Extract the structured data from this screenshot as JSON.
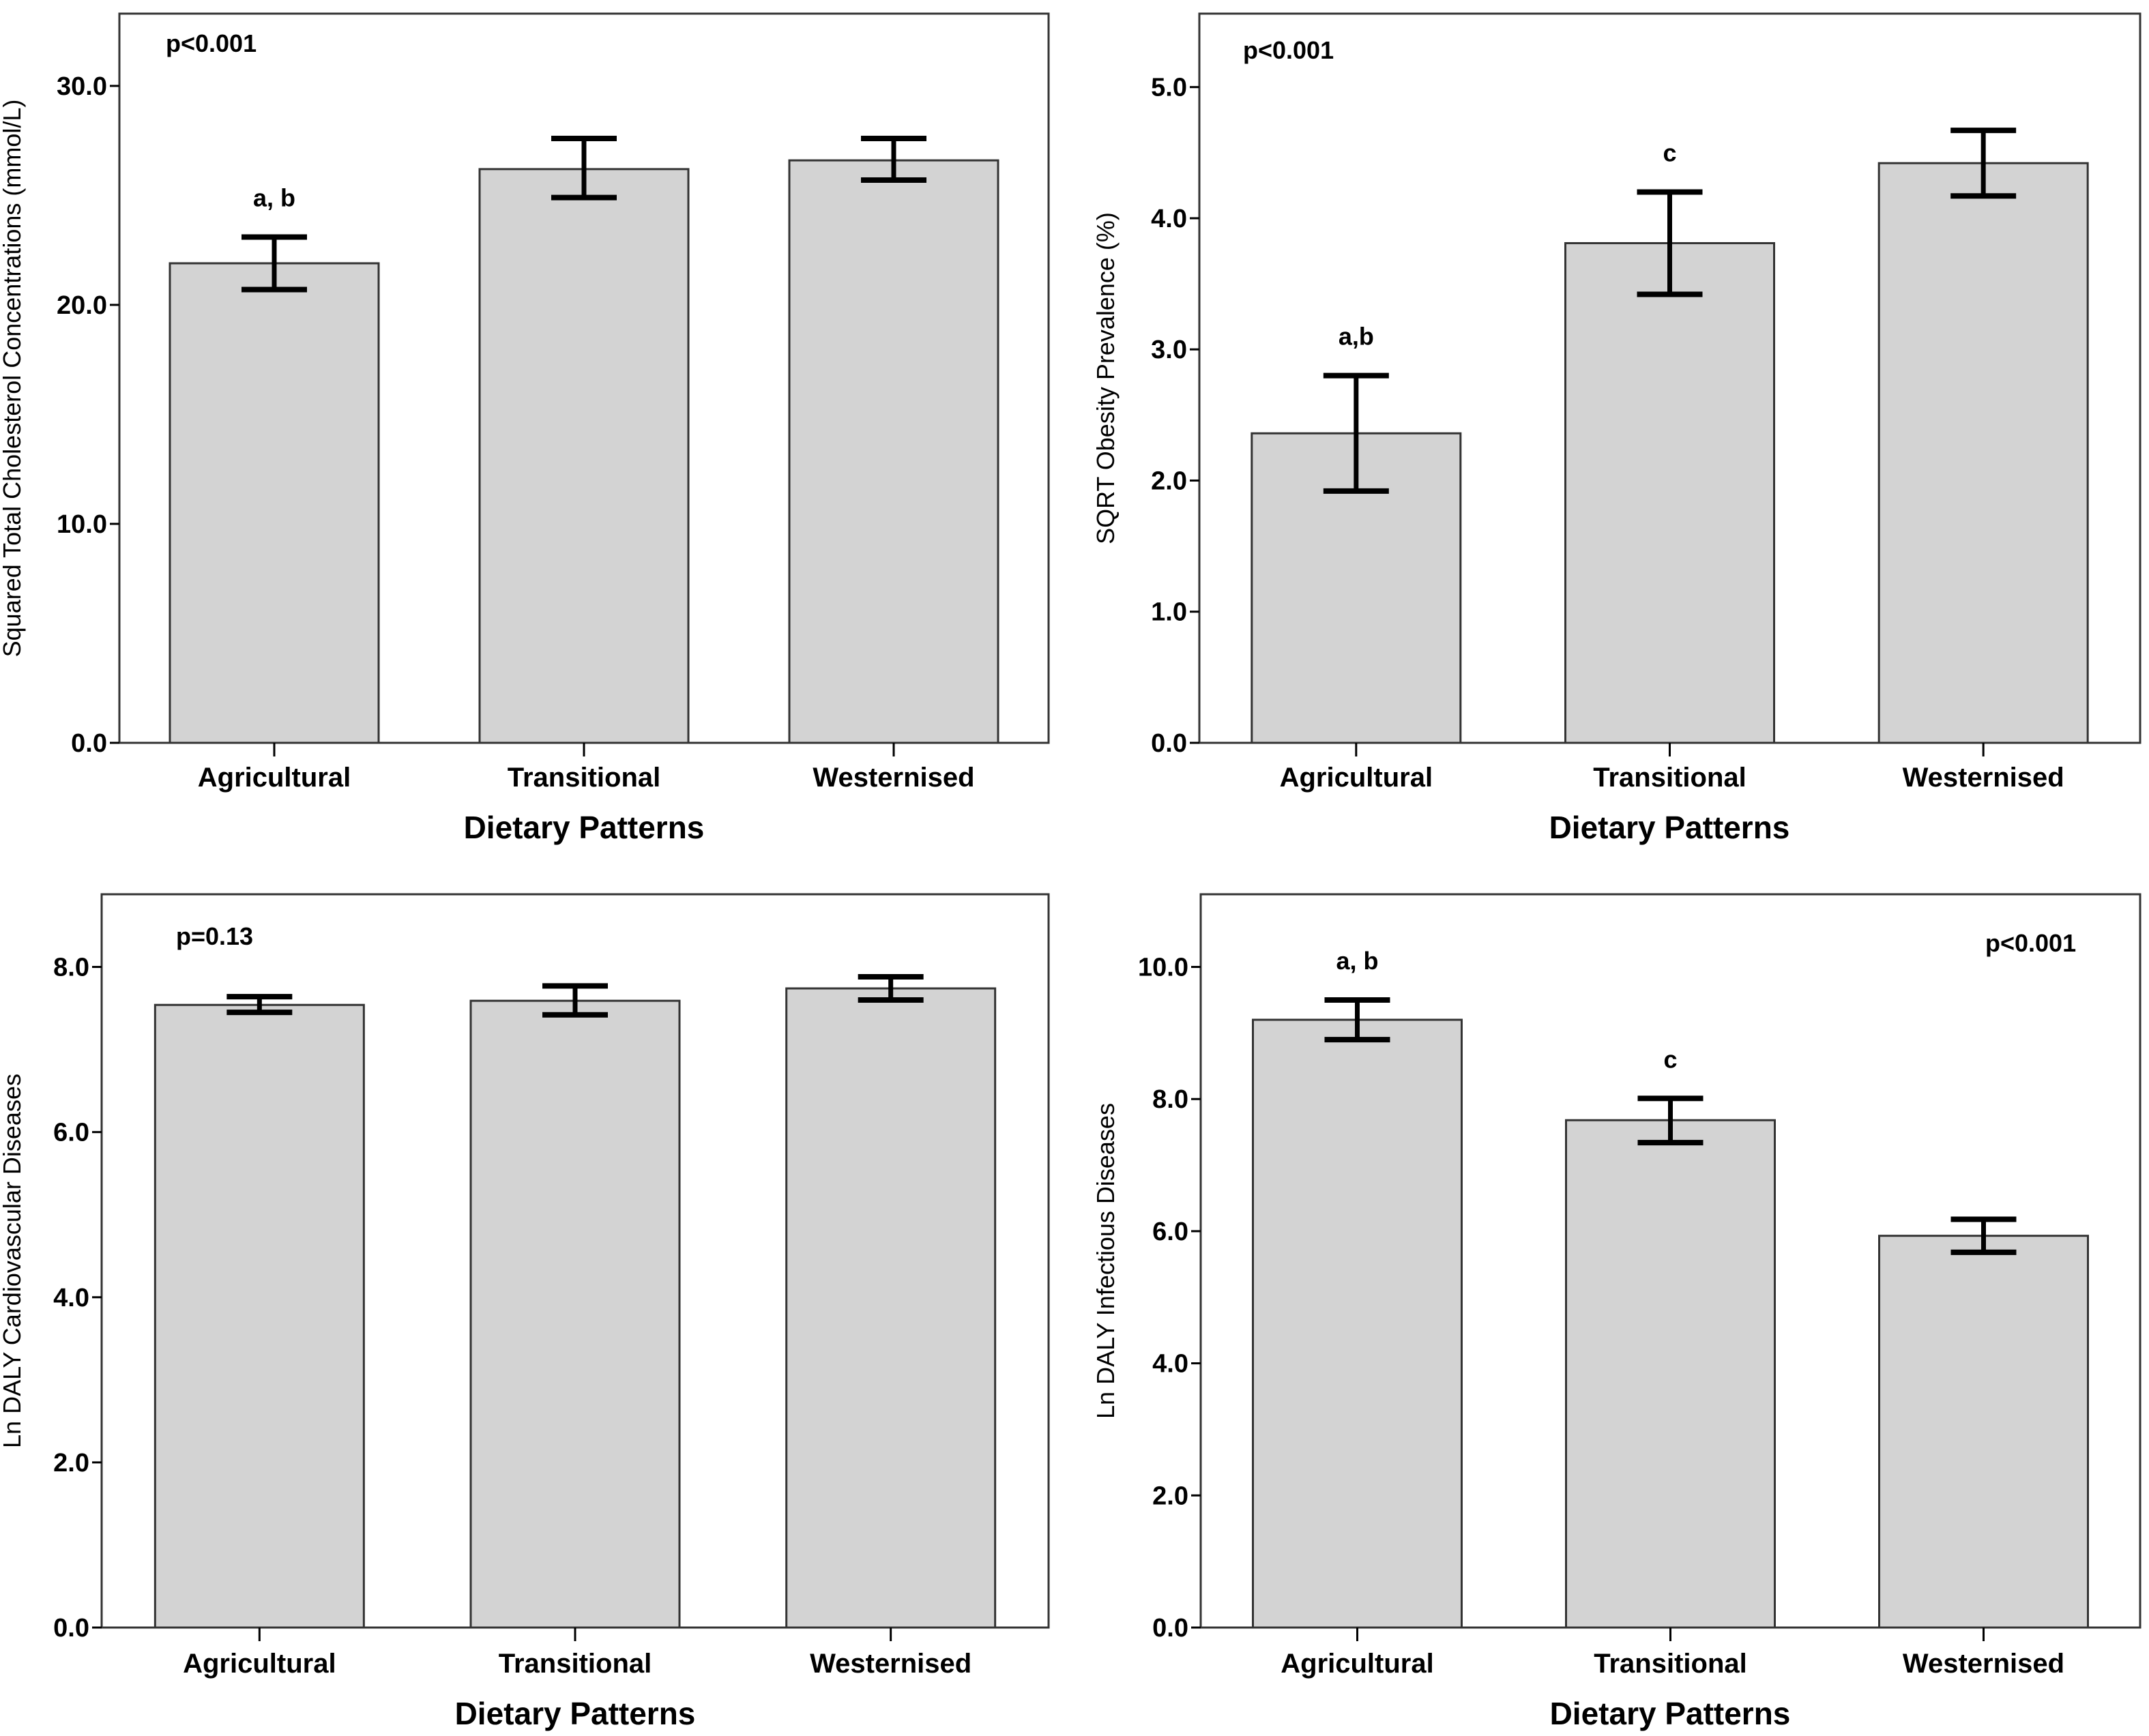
{
  "figure": {
    "bar_fill": "#d3d3d3",
    "bar_stroke": "#333333",
    "errorbar_color": "#000000",
    "frame_color": "#333333"
  },
  "chart_data": [
    {
      "id": "cholesterol",
      "type": "bar",
      "title": "",
      "xlabel": "Dietary Patterns",
      "ylabel": "Squared Total Cholesterol Concentrations (mmol/L)",
      "categories": [
        "Agricultural",
        "Transitional",
        "Westernised"
      ],
      "values": [
        21.9,
        26.2,
        26.6
      ],
      "error_low": [
        20.7,
        24.9,
        25.7
      ],
      "error_high": [
        23.1,
        27.6,
        27.6
      ],
      "significance_labels": [
        "a, b",
        "",
        ""
      ],
      "annotation": "p<0.001",
      "annotation_position": "top-left",
      "ylim": [
        0,
        33.3
      ],
      "yticks": [
        0,
        10,
        20,
        30
      ],
      "ytick_labels": [
        "0.0",
        "10.0",
        "20.0",
        "30.0"
      ],
      "grid": false,
      "legend": "none"
    },
    {
      "id": "obesity",
      "type": "bar",
      "title": "",
      "xlabel": "Dietary Patterns",
      "ylabel": "SQRT Obesity Prevalence (%)",
      "categories": [
        "Agricultural",
        "Transitional",
        "Westernised"
      ],
      "values": [
        2.36,
        3.81,
        4.42
      ],
      "error_low": [
        1.92,
        3.42,
        4.17
      ],
      "error_high": [
        2.8,
        4.2,
        4.67
      ],
      "significance_labels": [
        "a,b",
        "c",
        ""
      ],
      "annotation": "p<0.001",
      "annotation_position": "top-left",
      "ylim": [
        0,
        5.56
      ],
      "yticks": [
        0,
        1,
        2,
        3,
        4,
        5
      ],
      "ytick_labels": [
        "0.0",
        "1.0",
        "2.0",
        "3.0",
        "4.0",
        "5.0"
      ],
      "grid": false,
      "legend": "none"
    },
    {
      "id": "cvd-daly",
      "type": "bar",
      "title": "",
      "xlabel": "Dietary Patterns",
      "ylabel": "Ln DALY Cardiovascular Diseases",
      "categories": [
        "Agricultural",
        "Transitional",
        "Westernised"
      ],
      "values": [
        7.54,
        7.59,
        7.74
      ],
      "error_low": [
        7.45,
        7.42,
        7.6
      ],
      "error_high": [
        7.64,
        7.77,
        7.88
      ],
      "significance_labels": [
        "",
        "",
        ""
      ],
      "annotation": "p=0.13",
      "annotation_position": "top-left",
      "ylim": [
        0,
        8.88
      ],
      "yticks": [
        0,
        2,
        4,
        6,
        8
      ],
      "ytick_labels": [
        "0.0",
        "2.0",
        "4.0",
        "6.0",
        "8.0"
      ],
      "grid": false,
      "legend": "none"
    },
    {
      "id": "infectious-daly",
      "type": "bar",
      "title": "",
      "xlabel": "Dietary Patterns",
      "ylabel": "Ln DALY Infectious Diseases",
      "categories": [
        "Agricultural",
        "Transitional",
        "Westernised"
      ],
      "values": [
        9.2,
        7.68,
        5.93
      ],
      "error_low": [
        8.9,
        7.34,
        5.68
      ],
      "error_high": [
        9.5,
        8.01,
        6.18
      ],
      "significance_labels": [
        "a, b",
        "c",
        ""
      ],
      "annotation": "p<0.001",
      "annotation_position": "top-right",
      "ylim": [
        0,
        11.1
      ],
      "yticks": [
        0,
        2,
        4,
        6,
        8,
        10
      ],
      "ytick_labels": [
        "0.0",
        "2.0",
        "4.0",
        "6.0",
        "8.0",
        "10.0"
      ],
      "grid": false,
      "legend": "none"
    }
  ]
}
